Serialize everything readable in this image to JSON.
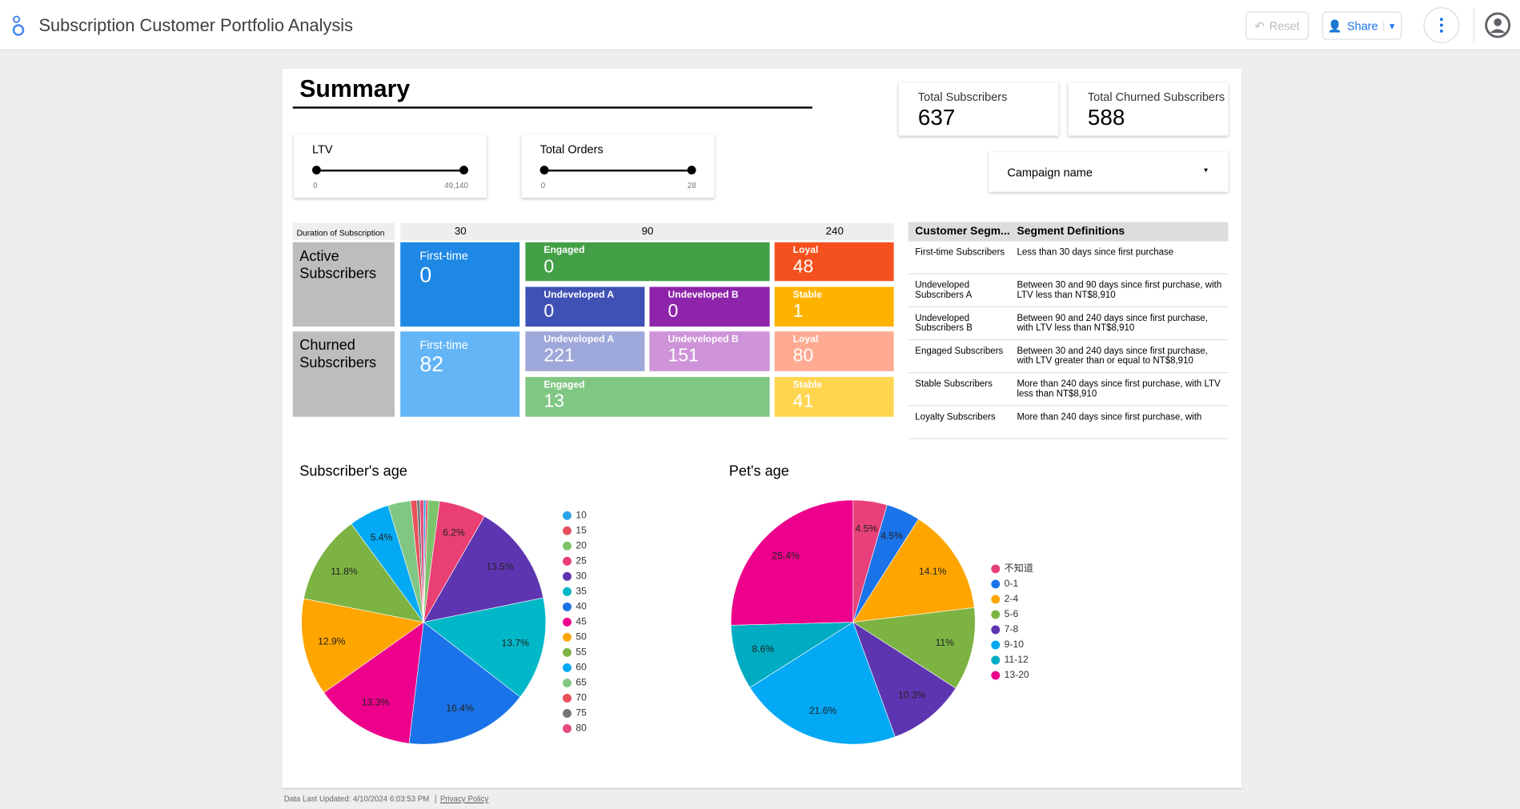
{
  "header": {
    "title": "Subscription Customer Portfolio Analysis",
    "reset": "Reset",
    "share": "Share"
  },
  "summary": {
    "title": "Summary",
    "scorecards": [
      {
        "label": "Total Subscribers",
        "value": 637
      },
      {
        "label": "Total Churned Subscribers",
        "value": 588
      }
    ],
    "campaign_filter": "Campaign name",
    "sliders": [
      {
        "label": "LTV",
        "min": 0,
        "max": "49,140"
      },
      {
        "label": "Total Orders",
        "min": 0,
        "max": 28
      }
    ]
  },
  "matrix": {
    "corner": "Duration of Subscription",
    "columns": [
      30,
      90,
      240
    ],
    "rows": [
      {
        "label": "Active Subscribers",
        "cells": [
          {
            "label": "First-time",
            "value": 0,
            "color": "#1e88e5"
          },
          {
            "label": "Engaged",
            "value": 0,
            "color": "#43a047"
          },
          {
            "label": "Loyal",
            "value": 48,
            "color": "#f4511e"
          },
          {
            "label": "Undeveloped A",
            "value": 0,
            "color": "#3f51b5"
          },
          {
            "label": "Undeveloped B",
            "value": 0,
            "color": "#8e24aa"
          },
          {
            "label": "Stable",
            "value": 1,
            "color": "#ffb300"
          }
        ]
      },
      {
        "label": "Churned Subscribers",
        "cells": [
          {
            "label": "First-time",
            "value": 82,
            "color": "#64b5f6"
          },
          {
            "label": "Undeveloped A",
            "value": 221,
            "color": "#9fa8da"
          },
          {
            "label": "Undeveloped B",
            "value": 151,
            "color": "#ce93d8"
          },
          {
            "label": "Loyal",
            "value": 80,
            "color": "#ffab91"
          },
          {
            "label": "Engaged",
            "value": 13,
            "color": "#81c784"
          },
          {
            "label": "Stable",
            "value": 41,
            "color": "#ffd54f"
          }
        ]
      }
    ]
  },
  "segment_table": {
    "headers": [
      "Customer Segm...",
      "Segment Definitions"
    ],
    "rows": [
      [
        "First-time Subscribers",
        "Less than 30 days since first purchase"
      ],
      [
        "Undeveloped Subscribers A",
        "Between 30 and 90 days since first purchase, with LTV less than NT$8,910"
      ],
      [
        "Undeveloped Subscribers B",
        "Between 90 and 240 days since first purchase, with LTV less than NT$8,910"
      ],
      [
        "Engaged Subscribers",
        "Between 30 and 240 days since first purchase, with LTV greater than or equal to NT$8,910"
      ],
      [
        "Stable Subscribers",
        "More than 240 days since first purchase, with LTV less than NT$8,910"
      ],
      [
        "Loyalty Subscribers",
        "More than 240 days since first purchase, with"
      ]
    ]
  },
  "chart_data": [
    {
      "type": "pie",
      "title": "Subscriber's age",
      "categories": [
        "10",
        "15",
        "20",
        "25",
        "30",
        "35",
        "40",
        "45",
        "50",
        "55",
        "60",
        "65",
        "70",
        "75",
        "80"
      ],
      "values": [
        0.3,
        0.3,
        1.5,
        6.2,
        13.5,
        13.7,
        16.4,
        13.3,
        12.9,
        11.8,
        5.4,
        3.0,
        0.8,
        0.4,
        0.5
      ],
      "value_labels": [
        null,
        null,
        null,
        "6.2%",
        "13.5%",
        "13.7%",
        "16.4%",
        "13.3%",
        "12.9%",
        "11.8%",
        "5.4%",
        null,
        null,
        null,
        null
      ],
      "colors": [
        "#2aa4e8",
        "#e6505f",
        "#7cc36b",
        "#e93f72",
        "#5e35b1",
        "#00b8c8",
        "#1a73e8",
        "#ec008c",
        "#ffa500",
        "#7cb342",
        "#03a9f4",
        "#81c784",
        "#e8505b",
        "#757575",
        "#e84a7a"
      ],
      "legend": "right"
    },
    {
      "type": "pie",
      "title": "Pet's age",
      "categories": [
        "不知道",
        "0-1",
        "2-4",
        "5-6",
        "7-8",
        "9-10",
        "11-12",
        "13-20"
      ],
      "values": [
        4.5,
        4.5,
        14.1,
        11,
        10.3,
        21.6,
        8.6,
        25.4
      ],
      "value_labels": [
        "4.5%",
        "4.5%",
        "14.1%",
        "11%",
        "10.3%",
        "21.6%",
        "8.6%",
        "25.4%"
      ],
      "colors": [
        "#e8407a",
        "#1a73e8",
        "#ffa500",
        "#7cb342",
        "#5e35b1",
        "#03a9f4",
        "#00acc1",
        "#ec008c"
      ],
      "legend": "right"
    }
  ],
  "footer": {
    "updated": "Data Last Updated: 4/10/2024 6:03:53 PM",
    "privacy": "Privacy Policy"
  }
}
